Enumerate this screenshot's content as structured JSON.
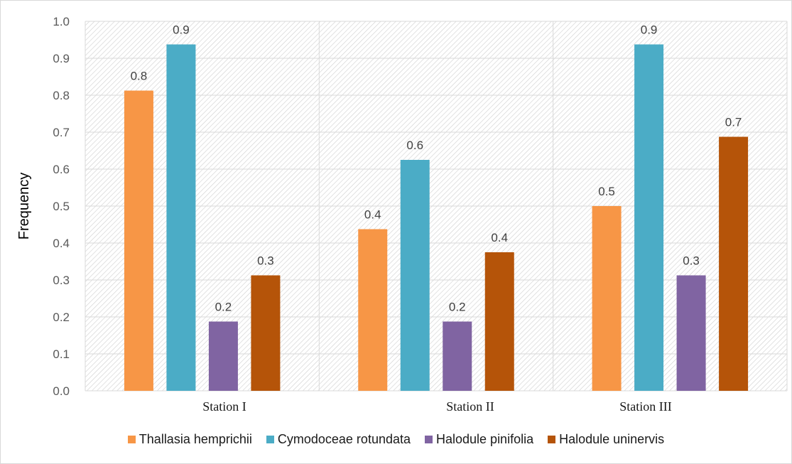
{
  "chart_data": {
    "type": "bar",
    "title": "",
    "xlabel": "",
    "ylabel": "Frequency",
    "ylim": [
      0,
      1.0
    ],
    "yticks": [
      "0.0",
      "0.1",
      "0.2",
      "0.3",
      "0.4",
      "0.5",
      "0.6",
      "0.7",
      "0.8",
      "0.9",
      "1.0"
    ],
    "categories": [
      "Station I",
      "Station II",
      "Station III"
    ],
    "grid": true,
    "legend": "bottom",
    "series": [
      {
        "name": "Thallasia hemprichii",
        "color": "#f79646",
        "values": [
          0.8125,
          0.4375,
          0.5
        ],
        "labels": [
          "0.8",
          "0.4",
          "0.5"
        ]
      },
      {
        "name": "Cymodoceae rotundata",
        "color": "#4bacc6",
        "values": [
          0.9375,
          0.625,
          0.9375
        ],
        "labels": [
          "0.9",
          "0.6",
          "0.9"
        ]
      },
      {
        "name": "Halodule pinifolia",
        "color": "#8064a2",
        "values": [
          0.1875,
          0.1875,
          0.3125
        ],
        "labels": [
          "0.2",
          "0.2",
          "0.3"
        ]
      },
      {
        "name": "Halodule uninervis",
        "color": "#b55409",
        "values": [
          0.3125,
          0.375,
          0.6875
        ],
        "labels": [
          "0.3",
          "0.4",
          "0.7"
        ]
      }
    ]
  }
}
